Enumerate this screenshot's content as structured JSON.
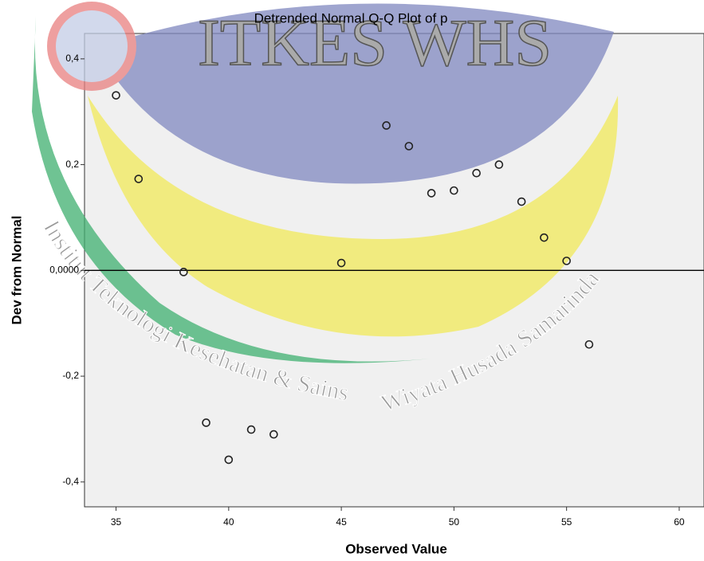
{
  "chart_data": {
    "type": "scatter",
    "title": "Detrended Normal Q-Q Plot of p",
    "x_label": "Observed Value",
    "y_label": "Dev from Normal",
    "watermark": {
      "logo_text": "ITKES WHS",
      "arc_text_1": "Institut Teknologi Kesehatan & Sains",
      "arc_text_2": "Wiyata Husada Samarinda"
    },
    "x": [
      35,
      36,
      38,
      39,
      40,
      41,
      42,
      45,
      47,
      48,
      49,
      50,
      51,
      52,
      53,
      54,
      55,
      56
    ],
    "values": [
      0.331,
      0.173,
      -0.003,
      -0.288,
      -0.358,
      -0.301,
      -0.31,
      0.014,
      0.274,
      0.235,
      0.146,
      0.151,
      0.184,
      0.2,
      0.13,
      0.062,
      0.018,
      -0.14
    ],
    "color": "#222222",
    "reference_y": 0,
    "xlim": [
      33.6,
      61.1
    ],
    "ylim": [
      -0.447,
      0.448
    ],
    "xticks": [
      35,
      40,
      45,
      50,
      55,
      60
    ],
    "yticks": [
      {
        "value": 0.4,
        "label": "0,4"
      },
      {
        "value": 0.2,
        "label": "0,2"
      },
      {
        "value": 0,
        "label": "0,0000"
      },
      {
        "value": -0.2,
        "label": "-0,2"
      },
      {
        "value": -0.4,
        "label": "-0,4"
      }
    ]
  }
}
